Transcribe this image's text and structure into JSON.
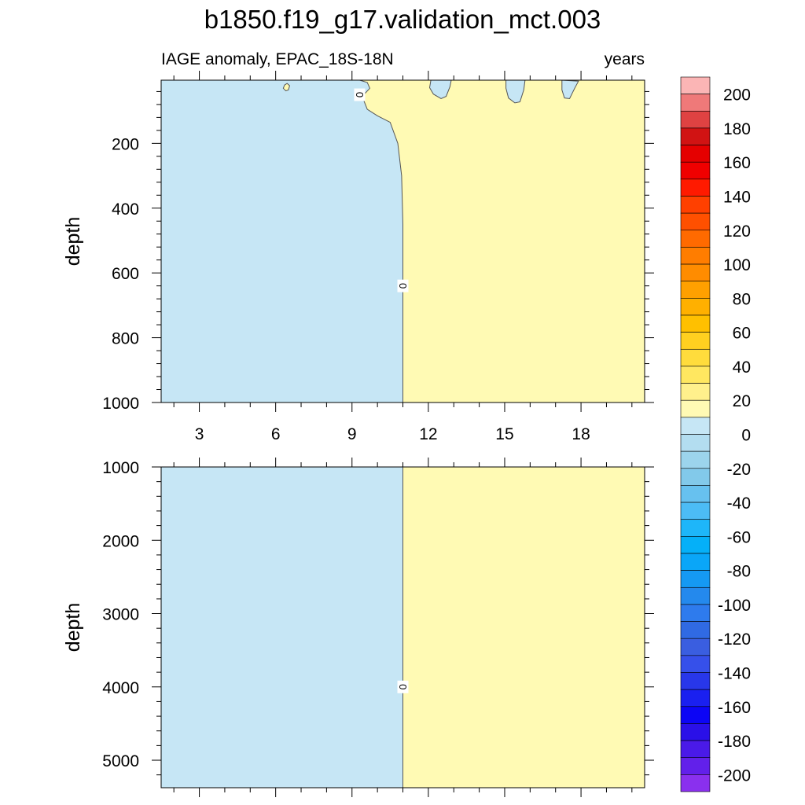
{
  "title": "b1850.f19_g17.validation_mct.003",
  "chart_data": {
    "type": "heatmap",
    "title": "b1850.f19_g17.validation_mct.003",
    "subtitle_left": "IAGE anomaly, EPAC_18S-18N",
    "subtitle_right": "years",
    "x": {
      "label": "",
      "range": [
        1.5,
        20.5
      ],
      "ticks": [
        3,
        6,
        9,
        12,
        15,
        18
      ],
      "tick_labels": [
        "3",
        "6",
        "9",
        "12",
        "15",
        "18"
      ]
    },
    "panels": [
      {
        "name": "upper",
        "ylabel": "depth",
        "ylim": [
          5,
          1000
        ],
        "yticks": [
          200,
          400,
          600,
          800,
          1000
        ],
        "ytick_labels": [
          "200",
          "400",
          "600",
          "800",
          "1000"
        ],
        "zero_contour": [
          [
            9.3,
            5
          ],
          [
            9.6,
            12
          ],
          [
            9.7,
            30
          ],
          [
            9.4,
            55
          ],
          [
            9.6,
            95
          ],
          [
            10.0,
            115
          ],
          [
            10.5,
            135
          ],
          [
            10.8,
            200
          ],
          [
            10.95,
            300
          ],
          [
            11.0,
            450
          ],
          [
            11.0,
            1000
          ]
        ],
        "contour_label": {
          "text": "0",
          "at": [
            11.0,
            640
          ]
        },
        "contour_label_2": {
          "text": "0",
          "at": [
            9.3,
            50
          ]
        },
        "bubbles": [
          {
            "sign": "positive",
            "points": [
              [
                6.35,
                20
              ],
              [
                6.45,
                15
              ],
              [
                6.55,
                22
              ],
              [
                6.5,
                35
              ],
              [
                6.4,
                38
              ],
              [
                6.3,
                30
              ]
            ]
          },
          {
            "sign": "negative",
            "points": [
              [
                12.1,
                5
              ],
              [
                12.9,
                5
              ],
              [
                12.85,
                25
              ],
              [
                12.7,
                55
              ],
              [
                12.5,
                62
              ],
              [
                12.2,
                48
              ],
              [
                12.05,
                28
              ]
            ]
          },
          {
            "sign": "negative",
            "points": [
              [
                15.05,
                5
              ],
              [
                15.8,
                5
              ],
              [
                15.75,
                35
              ],
              [
                15.6,
                72
              ],
              [
                15.4,
                75
              ],
              [
                15.15,
                60
              ],
              [
                15.05,
                30
              ]
            ]
          },
          {
            "sign": "negative",
            "points": [
              [
                17.25,
                5
              ],
              [
                17.9,
                8
              ],
              [
                17.75,
                30
              ],
              [
                17.55,
                62
              ],
              [
                17.35,
                60
              ],
              [
                17.25,
                35
              ]
            ]
          }
        ]
      },
      {
        "name": "lower",
        "ylabel": "depth",
        "ylim": [
          1000,
          5375
        ],
        "yticks": [
          1000,
          2000,
          3000,
          4000,
          5000
        ],
        "ytick_labels": [
          "1000",
          "2000",
          "3000",
          "4000",
          "5000"
        ],
        "zero_contour": [
          [
            11.0,
            1000
          ],
          [
            11.0,
            5375
          ]
        ],
        "contour_label": {
          "text": "0",
          "at": [
            11.0,
            4000
          ]
        }
      }
    ],
    "fill": {
      "negative_near_zero": "#c6e6f5",
      "positive_near_zero": "#fffab4",
      "contour_line": "#555555"
    },
    "colorbar": {
      "min": -210,
      "max": 210,
      "step": 10,
      "labels": [
        200,
        180,
        160,
        140,
        120,
        100,
        80,
        60,
        40,
        20,
        0,
        -20,
        -40,
        -60,
        -80,
        -100,
        -120,
        -140,
        -160,
        -180,
        -200
      ],
      "colors": [
        "#fbb5b5",
        "#ef7979",
        "#df4242",
        "#d11313",
        "#e50000",
        "#f00000",
        "#ff1a00",
        "#ff4000",
        "#ff5000",
        "#ff6a00",
        "#ff7d00",
        "#ff8c00",
        "#ffa000",
        "#ffb000",
        "#ffc000",
        "#ffd020",
        "#ffdc3c",
        "#ffe760",
        "#fff08c",
        "#fffab4",
        "#c6e6f5",
        "#b3ddf0",
        "#9cd4ec",
        "#82c9ea",
        "#67c1ef",
        "#4cbcf5",
        "#1eb6f9",
        "#05b0f8",
        "#0aa6f8",
        "#1599f3",
        "#2489ed",
        "#2e7bed",
        "#306ae3",
        "#3a5ee0",
        "#3650ea",
        "#2837ea",
        "#1a20f0",
        "#0c05f5",
        "#2a10e8",
        "#4a1ae8",
        "#6220ea",
        "#8a30ee"
      ]
    }
  }
}
